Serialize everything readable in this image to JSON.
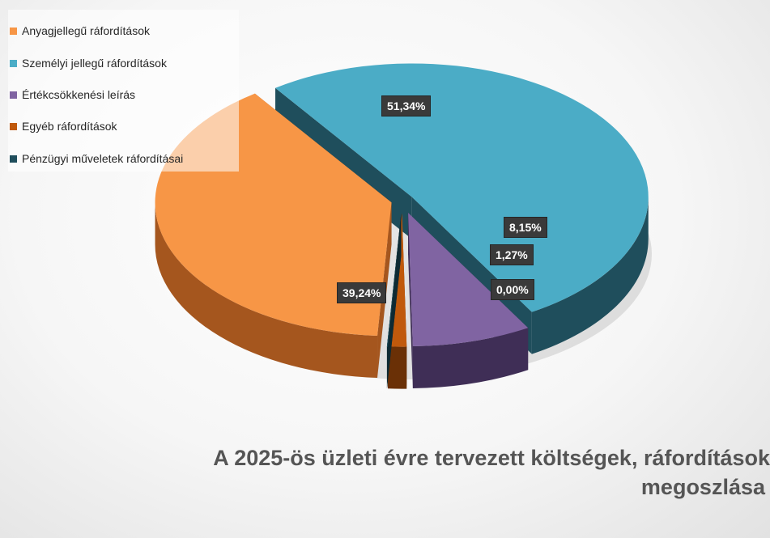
{
  "chart_data": {
    "type": "pie",
    "title_line1": "A 2025-ös üzleti évre tervezett költségek, ráfordítások",
    "title_line2": "megoszlása",
    "legend_position": "top-left",
    "slices": [
      {
        "name": "Anyagjellegű ráfordítások",
        "value": 39.24,
        "label": "39,24%",
        "color": "#F79646",
        "side": "#A5561E"
      },
      {
        "name": "Személyi jellegű ráfordítások",
        "value": 51.34,
        "label": "51,34%",
        "color": "#4BACC6",
        "side": "#1F4E5C"
      },
      {
        "name": "Értékcsökkenési leírás",
        "value": 8.15,
        "label": "8,15%",
        "color": "#8064A2",
        "side": "#3F2E56"
      },
      {
        "name": "Egyéb ráfordítások",
        "value": 1.27,
        "label": "1,27%",
        "color": "#C0590C",
        "side": "#6A3006"
      },
      {
        "name": "Pénzügyi műveletek ráfordításai",
        "value": 0.0,
        "label": "0,00%",
        "color": "#1F4E5C",
        "side": "#0E2A33"
      }
    ]
  }
}
